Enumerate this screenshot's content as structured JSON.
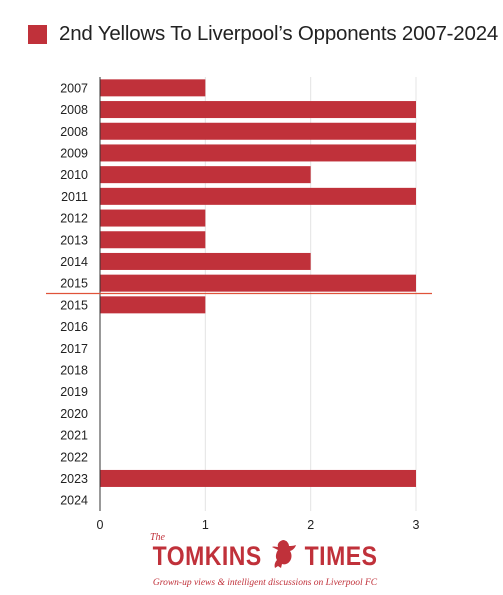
{
  "chart_data": {
    "type": "bar",
    "orientation": "horizontal",
    "title": "",
    "xlabel": "",
    "ylabel": "",
    "xlim": [
      0,
      3
    ],
    "x_ticks": [
      "0",
      "1",
      "2",
      "3"
    ],
    "grid": "vertical",
    "legend_position": "top-left",
    "series": [
      {
        "name": "2nd Yellows To Liverpool’s Opponents 2007-2024",
        "color": "#c0313a"
      }
    ],
    "categories": [
      "2007",
      "2008",
      "2008",
      "2009",
      "2010",
      "2011",
      "2012",
      "2013",
      "2014",
      "2015",
      "2015",
      "2016",
      "2017",
      "2018",
      "2019",
      "2020",
      "2021",
      "2022",
      "2023",
      "2024"
    ],
    "values": [
      1,
      3,
      3,
      3,
      2,
      3,
      1,
      1,
      2,
      3,
      1,
      0,
      0,
      0,
      0,
      0,
      0,
      0,
      3,
      0
    ],
    "divider_after_category_index": 9,
    "divider_color": "#e0533a"
  },
  "branding": {
    "prefix": "The",
    "name_left": "TOMKINS",
    "name_right": "TIMES",
    "tagline": "Grown-up views & intelligent discussions on Liverpool FC",
    "color": "#c0313a",
    "logo_icon": "liver-bird-icon"
  }
}
